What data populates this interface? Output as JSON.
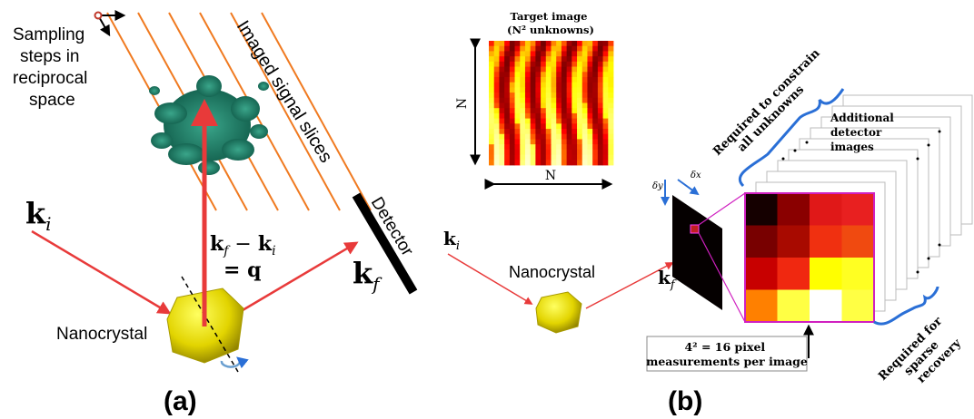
{
  "panel_a": {
    "sampling_label": [
      "Sampling",
      "steps in",
      "reciprocal",
      "space"
    ],
    "slices_label": "Imaged signal slices",
    "k_in": [
      "k",
      "i"
    ],
    "q_label": {
      "line1": [
        "k",
        "f",
        " − ",
        "k",
        "i"
      ],
      "line2": "= q"
    },
    "detector": "Detector",
    "k_out": [
      "k",
      "f"
    ],
    "nanocrystal": "Nanocrystal",
    "panel_label": "(a)"
  },
  "panel_b": {
    "target_title": [
      "Target image",
      "(N² unknowns)"
    ],
    "side_n": "N",
    "bottom_n": "N",
    "k_in": [
      "k",
      "i"
    ],
    "nanocrystal": "Nanocrystal",
    "k_out": [
      "k",
      "f"
    ],
    "delta_y": "δy",
    "delta_x": "δx",
    "constrain_label": [
      "Required to constrain",
      "all unknowns"
    ],
    "additional_label": [
      "Additional",
      "detector",
      "images"
    ],
    "sparse_label": [
      "Required for",
      "sparse",
      "recovery"
    ],
    "measurement_box": [
      "4² = 16 pixel",
      "measurements per image"
    ],
    "panel_label": "(b)"
  }
}
